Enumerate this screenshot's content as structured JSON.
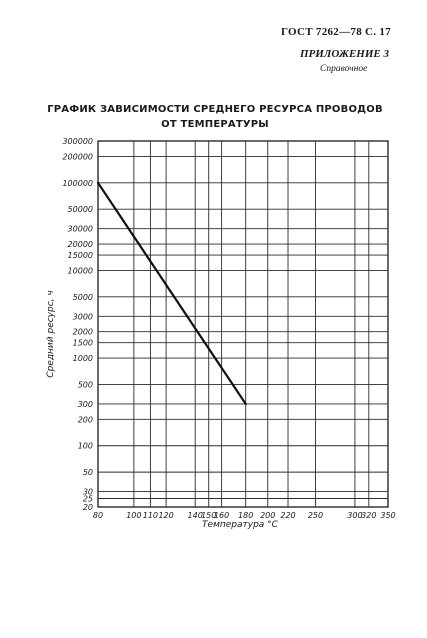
{
  "header": {
    "standard": "ГОСТ 7262—78 С. 17",
    "appendix": "ПРИЛОЖЕНИЕ 3",
    "appendix_sub": "Справочное"
  },
  "title_line1": "ГРАФИК ЗАВИСИМОСТИ СРЕДНЕГО РЕСУРСА ПРОВОДОВ",
  "title_line2": "ОТ ТЕМПЕРАТУРЫ",
  "chart_data": {
    "type": "line",
    "title": "ГРАФИК ЗАВИСИМОСТИ СРЕДНЕГО РЕСУРСА ПРОВОДОВ ОТ ТЕМПЕРАТУРЫ",
    "xlabel": "Температура °С",
    "ylabel": "Средний ресурс, ч",
    "x_reciprocal_kelvin": true,
    "y_log": true,
    "grid": true,
    "xlim": [
      80,
      350
    ],
    "ylim": [
      20,
      300000
    ],
    "x_ticks": [
      80,
      100,
      110,
      120,
      140,
      150,
      160,
      180,
      200,
      220,
      250,
      300,
      320,
      350
    ],
    "x_tick_labels": [
      "80",
      "100",
      "110",
      "120",
      "140",
      "150",
      "160",
      "180",
      "200",
      "220",
      "250",
      "300",
      "320",
      "350"
    ],
    "y_ticks": [
      300000,
      200000,
      100000,
      50000,
      30000,
      20000,
      15000,
      10000,
      5000,
      3000,
      2000,
      1500,
      1000,
      500,
      300,
      200,
      100,
      50,
      30,
      25,
      20
    ],
    "y_tick_labels": [
      "300000",
      "200000",
      "100000",
      "50000",
      "30000",
      "20000",
      "15000",
      "10000",
      "5000",
      "3000",
      "2000",
      "1500",
      "1000",
      "500",
      "300",
      "200",
      "100",
      "50",
      "30",
      "25",
      "20"
    ],
    "series": [
      {
        "x": [
          80,
          180
        ],
        "y": [
          100000,
          300
        ]
      }
    ]
  }
}
